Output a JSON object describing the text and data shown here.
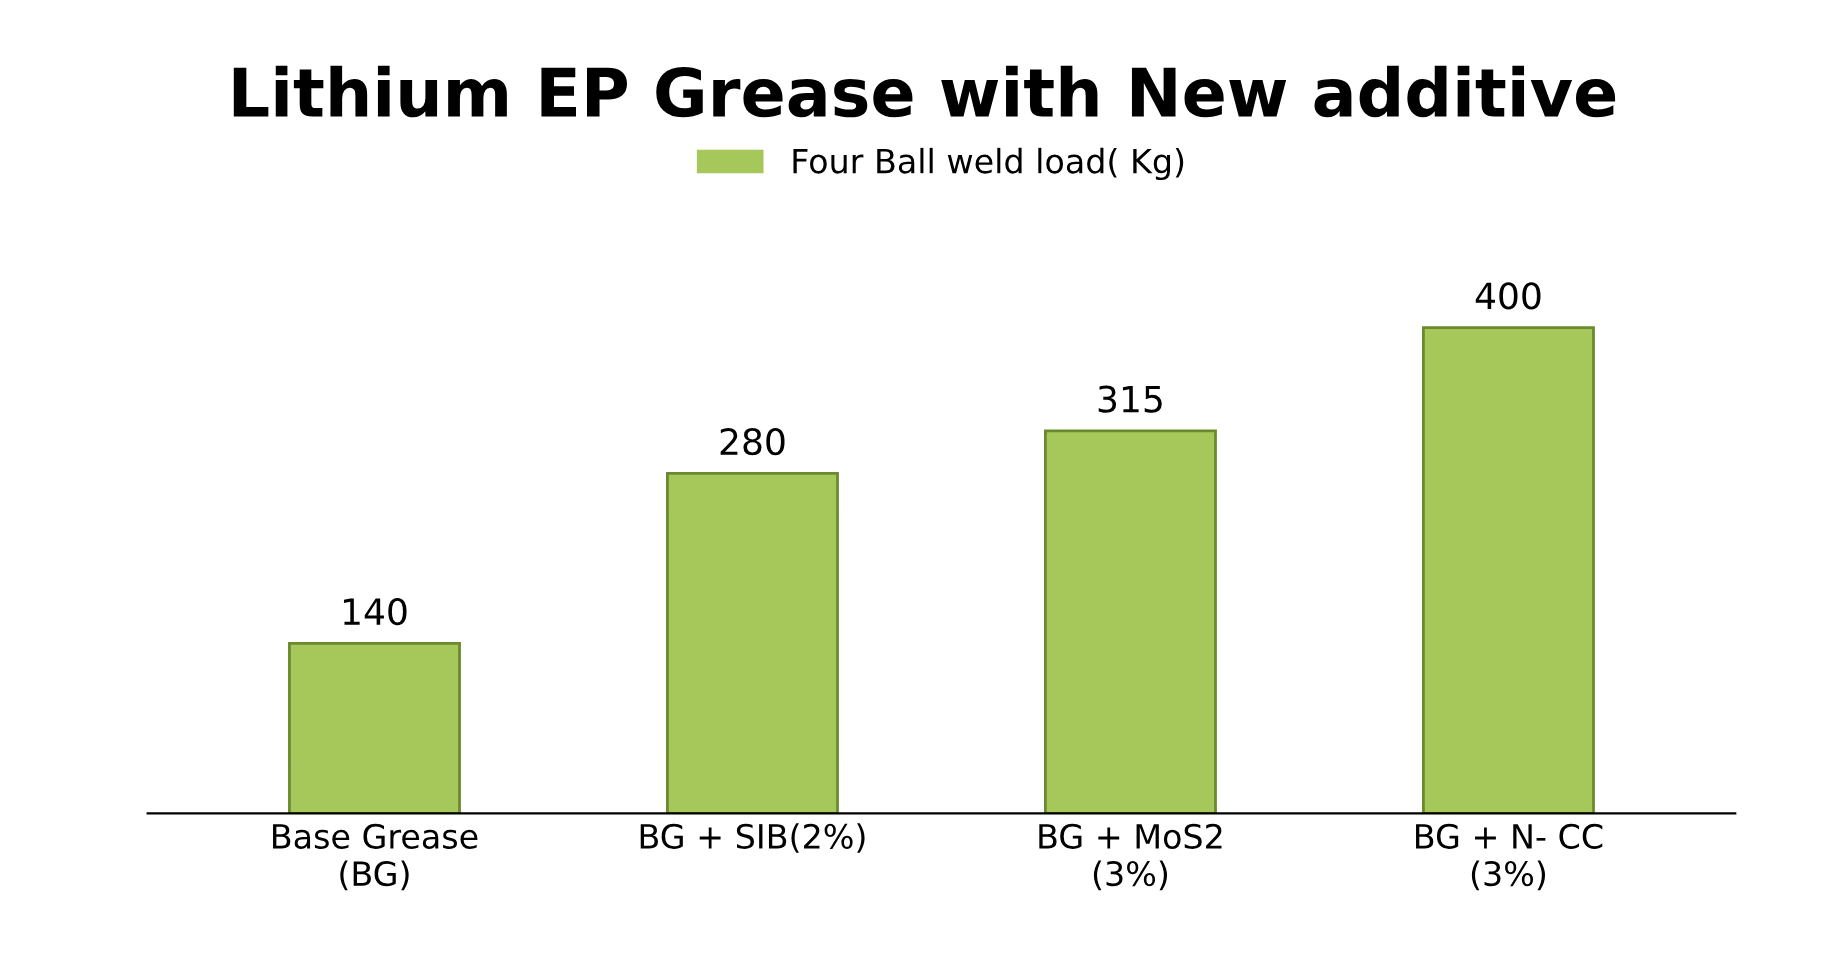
{
  "chart_data": {
    "type": "bar",
    "title": "Lithium EP Grease with New additive",
    "categories": [
      "Base Grease\n(BG)",
      "BG + SIB(2%)",
      "BG + MoS2\n(3%)",
      "BG + N- CC\n(3%)"
    ],
    "series": [
      {
        "name": "Four Ball weld load( Kg)",
        "color": "#a6c85a",
        "values": [
          140,
          280,
          315,
          400
        ]
      }
    ],
    "data_labels": true,
    "legend": "top",
    "grid": false
  }
}
